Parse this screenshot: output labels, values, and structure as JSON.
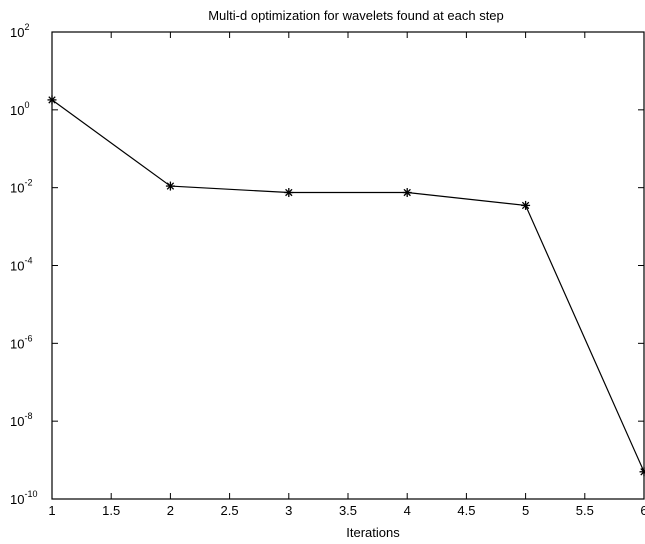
{
  "chart_data": {
    "type": "line",
    "title": "Multi-d optimization  for wavelets found at each step",
    "xlabel": "Iterations",
    "ylabel": "",
    "yscale": "log",
    "xlim": [
      1,
      6
    ],
    "ylim": [
      1e-10,
      100
    ],
    "x_ticks": [
      "1",
      "1.5",
      "2",
      "2.5",
      "3",
      "3.5",
      "4",
      "4.5",
      "5",
      "5.5",
      "6"
    ],
    "y_ticks": [
      {
        "base": "10",
        "exp": "2",
        "value": 100
      },
      {
        "base": "10",
        "exp": "0",
        "value": 1
      },
      {
        "base": "10",
        "exp": "-2",
        "value": 0.01
      },
      {
        "base": "10",
        "exp": "-4",
        "value": 0.0001
      },
      {
        "base": "10",
        "exp": "-6",
        "value": 1e-06
      },
      {
        "base": "10",
        "exp": "-8",
        "value": 1e-08
      },
      {
        "base": "10",
        "exp": "-10",
        "value": 1e-10
      }
    ],
    "grid": false,
    "series": [
      {
        "marker": "asterisk",
        "x": [
          1,
          2,
          3,
          4,
          5,
          6
        ],
        "y": [
          1.8,
          0.011,
          0.0075,
          0.0075,
          0.0035,
          5e-10
        ]
      }
    ]
  }
}
